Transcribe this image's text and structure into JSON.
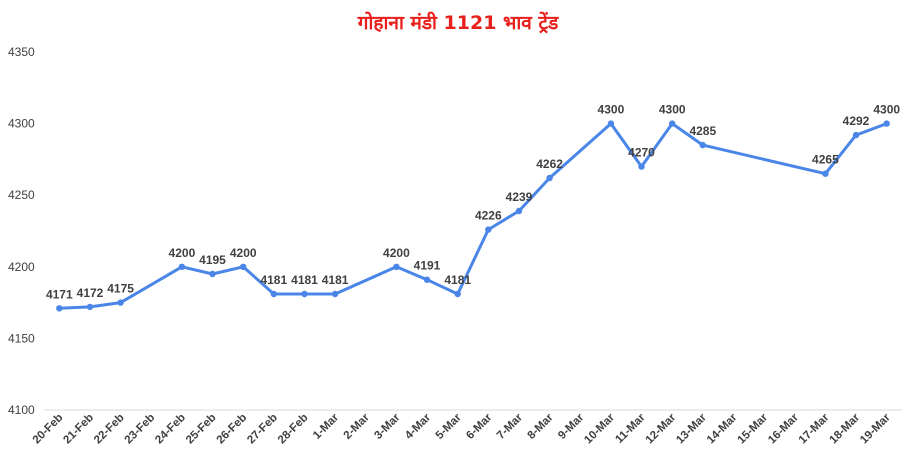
{
  "chart_data": {
    "type": "line",
    "title": "गोहाना मंडी 1121 भाव ट्रेंड",
    "xlabel": "",
    "ylabel": "",
    "ylim": [
      4100,
      4350
    ],
    "yticks": [
      4100,
      4150,
      4200,
      4250,
      4300,
      4350
    ],
    "grid": false,
    "legend": "none",
    "line_color": "#4a86e8",
    "categories": [
      "20-Feb",
      "21-Feb",
      "22-Feb",
      "23-Feb",
      "24-Feb",
      "25-Feb",
      "26-Feb",
      "27-Feb",
      "28-Feb",
      "1-Mar",
      "2-Mar",
      "3-Mar",
      "4-Mar",
      "5-Mar",
      "6-Mar",
      "7-Mar",
      "8-Mar",
      "9-Mar",
      "10-Mar",
      "11-Mar",
      "12-Mar",
      "13-Mar",
      "14-Mar",
      "15-Mar",
      "16-Mar",
      "17-Mar",
      "18-Mar",
      "19-Mar"
    ],
    "series": [
      {
        "values": [
          4171,
          4172,
          4175,
          null,
          4200,
          4195,
          4200,
          4181,
          4181,
          4181,
          null,
          4200,
          4191,
          4181,
          4226,
          4239,
          4262,
          null,
          4300,
          4270,
          4300,
          4285,
          null,
          null,
          null,
          4265,
          4292,
          4300
        ]
      }
    ]
  }
}
